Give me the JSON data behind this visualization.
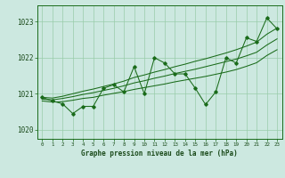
{
  "x": [
    0,
    1,
    2,
    3,
    4,
    5,
    6,
    7,
    8,
    9,
    10,
    11,
    12,
    13,
    14,
    15,
    16,
    17,
    18,
    19,
    20,
    21,
    22,
    23
  ],
  "y_main": [
    1020.9,
    1020.8,
    1020.72,
    1020.45,
    1020.65,
    1020.65,
    1021.15,
    1021.25,
    1021.05,
    1021.75,
    1021.0,
    1022.0,
    1021.85,
    1021.55,
    1021.55,
    1021.15,
    1020.7,
    1021.05,
    1022.0,
    1021.85,
    1022.55,
    1022.45,
    1023.1,
    1022.8
  ],
  "y_trend_upper": [
    1020.9,
    1020.88,
    1020.93,
    1021.0,
    1021.07,
    1021.13,
    1021.2,
    1021.27,
    1021.35,
    1021.45,
    1021.52,
    1021.6,
    1021.67,
    1021.75,
    1021.82,
    1021.9,
    1021.97,
    1022.05,
    1022.13,
    1022.22,
    1022.32,
    1022.43,
    1022.65,
    1022.82
  ],
  "y_trend_mid": [
    1020.85,
    1020.83,
    1020.87,
    1020.92,
    1020.98,
    1021.03,
    1021.09,
    1021.15,
    1021.22,
    1021.3,
    1021.36,
    1021.43,
    1021.49,
    1021.56,
    1021.62,
    1021.68,
    1021.75,
    1021.82,
    1021.89,
    1021.96,
    1022.05,
    1022.15,
    1022.35,
    1022.52
  ],
  "y_trend_lower": [
    1020.8,
    1020.77,
    1020.78,
    1020.82,
    1020.87,
    1020.9,
    1020.96,
    1021.01,
    1021.06,
    1021.12,
    1021.17,
    1021.22,
    1021.27,
    1021.33,
    1021.38,
    1021.43,
    1021.48,
    1021.54,
    1021.6,
    1021.67,
    1021.76,
    1021.86,
    1022.06,
    1022.22
  ],
  "bg_color": "#cce8e0",
  "line_color": "#1a6b1a",
  "grid_color": "#99ccaa",
  "xlabel": "Graphe pression niveau de la mer (hPa)",
  "ylim": [
    1019.75,
    1023.45
  ],
  "yticks": [
    1020,
    1021,
    1022,
    1023
  ],
  "xlim": [
    -0.5,
    23.5
  ]
}
